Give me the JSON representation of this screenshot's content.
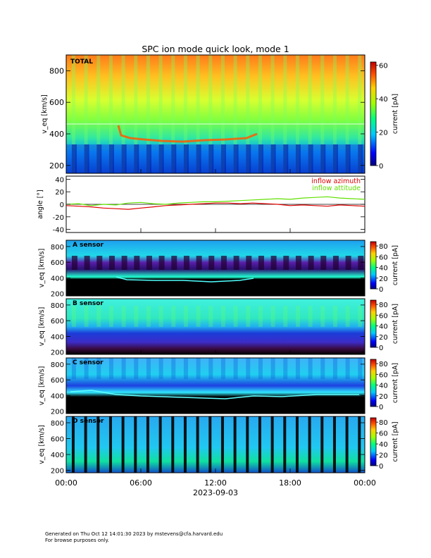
{
  "title": "SPC ion mode quick look, mode 1",
  "footer_line1": "Generated on Thu Oct 12 14:01:30 2023 by mstevens@cfa.harvard.edu",
  "footer_line2": "For browse purposes only.",
  "chart_data": [
    {
      "type": "heatmap",
      "panel_label": "TOTAL",
      "xlabel": "",
      "ylabel": "v_eq [km/s]",
      "y_ticks": [
        "200",
        "400",
        "600",
        "800"
      ],
      "ylim": [
        150,
        900
      ],
      "colorbar": {
        "label": "current [pA]",
        "ticks": [
          "0",
          "20",
          "40",
          "60"
        ],
        "range": [
          0,
          62
        ]
      },
      "description_values": {
        "band_high_pA": 52,
        "band_mid_pA": 30,
        "band_low_pA": 8,
        "beam_trace_kms": [
          440,
          370,
          355,
          360,
          365,
          380,
          390
        ]
      }
    },
    {
      "type": "line",
      "xlabel": "",
      "ylabel": "angle [°]",
      "y_ticks": [
        "-40",
        "-20",
        "0",
        "20",
        "40"
      ],
      "ylim": [
        -45,
        45
      ],
      "series": [
        {
          "name": "inflow azimuth",
          "color": "#e00000",
          "x": [
            0,
            1,
            2,
            3,
            4,
            5,
            6,
            7,
            8,
            9,
            10,
            11,
            12,
            13,
            14,
            15,
            16,
            17,
            18,
            19,
            20,
            21,
            22,
            23,
            24
          ],
          "values": [
            -2,
            -3,
            -4,
            -6,
            -7,
            -8,
            -6,
            -4,
            -2,
            -1,
            0,
            1,
            2,
            2,
            1,
            2,
            1,
            0,
            -2,
            -1,
            -2,
            -3,
            -1,
            -2,
            -3
          ]
        },
        {
          "name": "inflow attitude",
          "color": "#60e000",
          "x": [
            0,
            1,
            2,
            3,
            4,
            5,
            6,
            7,
            8,
            9,
            10,
            11,
            12,
            13,
            14,
            15,
            16,
            17,
            18,
            19,
            20,
            21,
            22,
            23,
            24
          ],
          "values": [
            0,
            1,
            -2,
            0,
            -1,
            2,
            3,
            1,
            0,
            2,
            3,
            4,
            4,
            5,
            6,
            7,
            8,
            9,
            8,
            10,
            11,
            12,
            10,
            9,
            8
          ]
        }
      ]
    },
    {
      "type": "heatmap",
      "panel_label": "A sensor",
      "ylabel": "v_eq [km/s]",
      "y_ticks": [
        "200",
        "400",
        "600",
        "800"
      ],
      "ylim": [
        170,
        880
      ],
      "colorbar": {
        "label": "current [pA]",
        "ticks": [
          "0",
          "20",
          "40",
          "60",
          "80"
        ],
        "range": [
          0,
          88
        ]
      }
    },
    {
      "type": "heatmap",
      "panel_label": "B sensor",
      "ylabel": "v_eq [km/s]",
      "y_ticks": [
        "200",
        "400",
        "600",
        "800"
      ],
      "ylim": [
        170,
        880
      ],
      "colorbar": {
        "label": "current [pA]",
        "ticks": [
          "0",
          "20",
          "40",
          "60",
          "80"
        ],
        "range": [
          0,
          88
        ]
      }
    },
    {
      "type": "heatmap",
      "panel_label": "C sensor",
      "ylabel": "v_eq [km/s]",
      "y_ticks": [
        "200",
        "400",
        "600",
        "800"
      ],
      "ylim": [
        170,
        880
      ],
      "colorbar": {
        "label": "current [pA]",
        "ticks": [
          "0",
          "20",
          "40",
          "60",
          "80"
        ],
        "range": [
          0,
          88
        ]
      }
    },
    {
      "type": "heatmap",
      "panel_label": "D sensor",
      "ylabel": "v_eq [km/s]",
      "y_ticks": [
        "200",
        "400",
        "600",
        "800"
      ],
      "ylim": [
        170,
        880
      ],
      "colorbar": {
        "label": "current [pA]",
        "ticks": [
          "0",
          "20",
          "40",
          "60",
          "80"
        ],
        "range": [
          0,
          88
        ]
      }
    }
  ],
  "x_axis": {
    "ticks": [
      "00:00",
      "06:00",
      "12:00",
      "18:00",
      "00:00"
    ],
    "date_label": "2023-09-03",
    "range_hours": [
      0,
      24
    ]
  }
}
